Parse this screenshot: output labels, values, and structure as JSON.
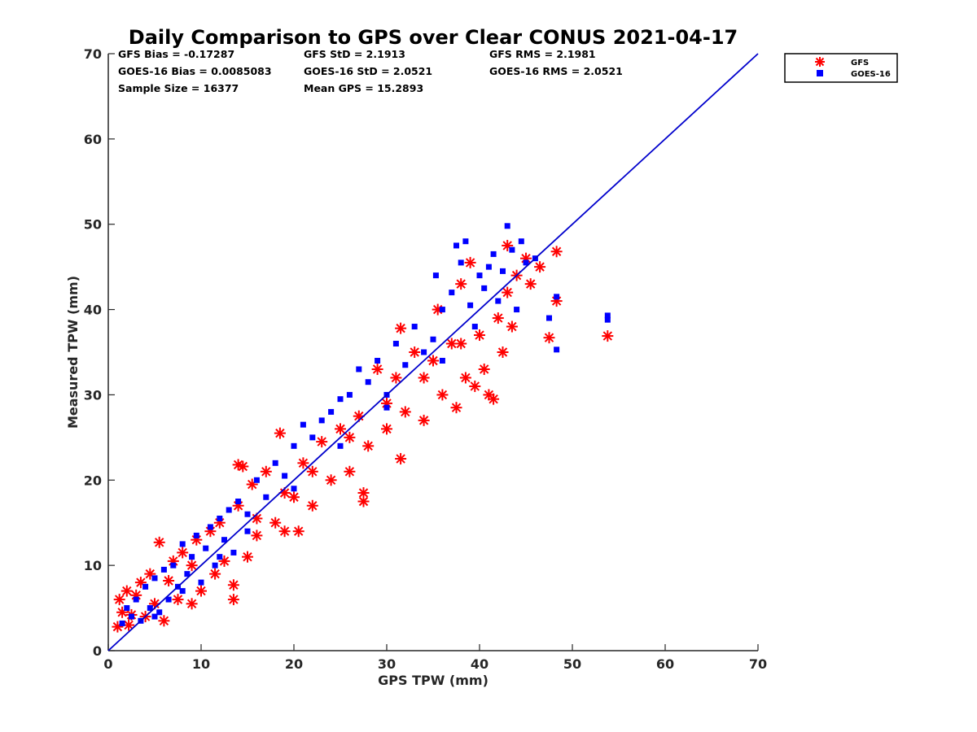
{
  "chart_data": {
    "type": "scatter",
    "title": "Daily Comparison to GPS over Clear CONUS 2021-04-17",
    "xlabel": "GPS TPW (mm)",
    "ylabel": "Measured TPW (mm)",
    "xlim": [
      0,
      70
    ],
    "ylim": [
      0,
      70
    ],
    "xticks": [
      "0",
      "10",
      "20",
      "30",
      "40",
      "50",
      "60",
      "70"
    ],
    "yticks": [
      "0",
      "10",
      "20",
      "30",
      "40",
      "50",
      "60",
      "70"
    ],
    "stats": [
      "GFS Bias = -0.17287",
      "GFS StD = 2.1913",
      "GFS RMS = 2.1981",
      "GOES-16 Bias = 0.0085083",
      "GOES-16 StD = 2.0521",
      "GOES-16 RMS = 2.0521",
      "Sample Size = 16377",
      "Mean GPS = 15.2893"
    ],
    "legend": [
      "GFS",
      "GOES-16"
    ],
    "legend_position": "top-right",
    "reference_line": {
      "name": "1:1 line",
      "x": [
        0,
        70
      ],
      "y": [
        0,
        70
      ],
      "color": "#0000cc"
    },
    "series": [
      {
        "name": "GFS",
        "marker": "asterisk",
        "color": "#ff0000",
        "points": [
          [
            1,
            2.8
          ],
          [
            1.2,
            6
          ],
          [
            1.5,
            4.5
          ],
          [
            2,
            7
          ],
          [
            2.2,
            3
          ],
          [
            3,
            6.5
          ],
          [
            3.5,
            8
          ],
          [
            4,
            4
          ],
          [
            4.5,
            9
          ],
          [
            5,
            5.5
          ],
          [
            5.5,
            12.7
          ],
          [
            6,
            3.5
          ],
          [
            7,
            10.5
          ],
          [
            7.5,
            6
          ],
          [
            8,
            11.5
          ],
          [
            9,
            5.5
          ],
          [
            9.5,
            13
          ],
          [
            10,
            7
          ],
          [
            11,
            14
          ],
          [
            11.5,
            9
          ],
          [
            12,
            15
          ],
          [
            12.5,
            10.5
          ],
          [
            13.5,
            6
          ],
          [
            13.5,
            7.7
          ],
          [
            14,
            21.8
          ],
          [
            14.5,
            21.6
          ],
          [
            14,
            17
          ],
          [
            15,
            11
          ],
          [
            15.5,
            19.5
          ],
          [
            16,
            13.5
          ],
          [
            17,
            21
          ],
          [
            18,
            15
          ],
          [
            18.5,
            25.5
          ],
          [
            19,
            14
          ],
          [
            20,
            18
          ],
          [
            20.5,
            14
          ],
          [
            21,
            22
          ],
          [
            22,
            17
          ],
          [
            23,
            24.5
          ],
          [
            24,
            20
          ],
          [
            25,
            26
          ],
          [
            26,
            21
          ],
          [
            27,
            27.5
          ],
          [
            27.5,
            17.5
          ],
          [
            27.5,
            18.5
          ],
          [
            28,
            24
          ],
          [
            29,
            33
          ],
          [
            30,
            26
          ],
          [
            31,
            32
          ],
          [
            31.5,
            22.5
          ],
          [
            31.5,
            37.8
          ],
          [
            32,
            28
          ],
          [
            33,
            35
          ],
          [
            34,
            27
          ],
          [
            35,
            34
          ],
          [
            35.5,
            40
          ],
          [
            36,
            30
          ],
          [
            37,
            36
          ],
          [
            37.5,
            28.5
          ],
          [
            38,
            43
          ],
          [
            38.5,
            32
          ],
          [
            39,
            45.5
          ],
          [
            39.5,
            31
          ],
          [
            40,
            37
          ],
          [
            40.5,
            33
          ],
          [
            41,
            30
          ],
          [
            41.5,
            29.5
          ],
          [
            42,
            39
          ],
          [
            42.5,
            35
          ],
          [
            43,
            47.5
          ],
          [
            43,
            42
          ],
          [
            43.5,
            38
          ],
          [
            44,
            44
          ],
          [
            45,
            46
          ],
          [
            45.5,
            43
          ],
          [
            46.5,
            45
          ],
          [
            47.5,
            36.7
          ],
          [
            48.3,
            46.8
          ],
          [
            48.3,
            41
          ],
          [
            53.8,
            36.9
          ],
          [
            2.5,
            4.2
          ],
          [
            6.5,
            8.2
          ],
          [
            9,
            10
          ],
          [
            16,
            15.5
          ],
          [
            19,
            18.5
          ],
          [
            22,
            21
          ],
          [
            26,
            25
          ],
          [
            30,
            29
          ],
          [
            34,
            32
          ],
          [
            38,
            36
          ]
        ]
      },
      {
        "name": "GOES-16",
        "marker": "square",
        "color": "#0000ff",
        "points": [
          [
            1.5,
            3.2
          ],
          [
            2,
            5
          ],
          [
            2.5,
            4
          ],
          [
            3,
            6
          ],
          [
            3.5,
            3.5
          ],
          [
            4,
            7.5
          ],
          [
            4.5,
            5
          ],
          [
            5,
            8.5
          ],
          [
            5.5,
            4.5
          ],
          [
            6,
            9.5
          ],
          [
            6.5,
            6
          ],
          [
            7,
            10
          ],
          [
            7.5,
            7.5
          ],
          [
            8,
            12.5
          ],
          [
            8.5,
            9
          ],
          [
            9,
            11
          ],
          [
            9.5,
            13.5
          ],
          [
            10,
            8
          ],
          [
            10.5,
            12
          ],
          [
            11,
            14.5
          ],
          [
            11.5,
            10
          ],
          [
            12,
            15.5
          ],
          [
            12.5,
            13
          ],
          [
            13,
            16.5
          ],
          [
            13.5,
            11.5
          ],
          [
            14,
            17.5
          ],
          [
            15,
            16
          ],
          [
            16,
            20
          ],
          [
            17,
            18
          ],
          [
            18,
            22
          ],
          [
            19,
            20.5
          ],
          [
            20,
            24
          ],
          [
            21,
            26.5
          ],
          [
            22,
            25
          ],
          [
            23,
            27
          ],
          [
            24,
            28
          ],
          [
            25,
            29.5
          ],
          [
            26,
            30
          ],
          [
            27,
            33
          ],
          [
            28,
            31.5
          ],
          [
            29,
            34
          ],
          [
            30,
            30
          ],
          [
            31,
            36
          ],
          [
            32,
            33.5
          ],
          [
            33,
            38
          ],
          [
            34,
            35
          ],
          [
            35,
            36.5
          ],
          [
            35.3,
            44
          ],
          [
            36,
            40
          ],
          [
            37,
            42
          ],
          [
            37.5,
            47.5
          ],
          [
            38,
            45.5
          ],
          [
            38.5,
            48
          ],
          [
            39,
            40.5
          ],
          [
            39.5,
            38
          ],
          [
            40,
            44
          ],
          [
            40.5,
            42.5
          ],
          [
            41,
            45
          ],
          [
            41.5,
            46.5
          ],
          [
            42,
            41
          ],
          [
            42.5,
            44.5
          ],
          [
            43,
            49.8
          ],
          [
            43.5,
            47
          ],
          [
            44,
            40
          ],
          [
            44.5,
            48
          ],
          [
            45,
            45.5
          ],
          [
            46,
            46
          ],
          [
            47.5,
            39
          ],
          [
            48.3,
            41.5
          ],
          [
            48.3,
            35.3
          ],
          [
            53.8,
            38.8
          ],
          [
            53.8,
            39.3
          ],
          [
            5,
            4
          ],
          [
            8,
            7
          ],
          [
            12,
            11
          ],
          [
            15,
            14
          ],
          [
            20,
            19
          ],
          [
            25,
            24
          ],
          [
            30,
            28.5
          ],
          [
            36,
            34
          ]
        ]
      }
    ]
  }
}
